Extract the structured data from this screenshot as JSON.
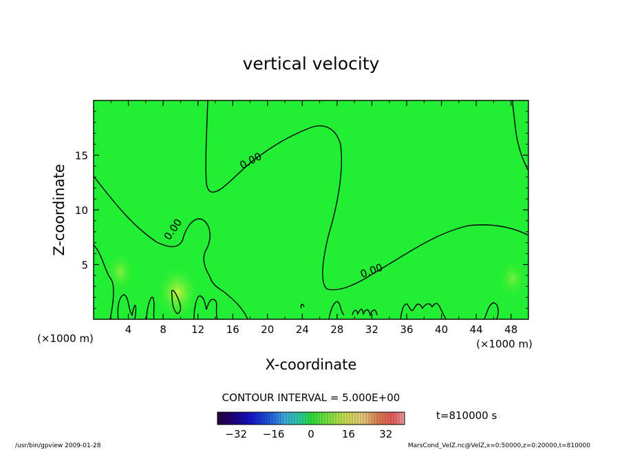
{
  "chart_data": {
    "type": "heatmap",
    "title": "vertical velocity",
    "xlabel": "X-coordinate",
    "ylabel": "Z-coordinate",
    "xunit": "(×1000 m)",
    "yunit": "(×1000 m)",
    "xlim": [
      0,
      50
    ],
    "ylim": [
      0,
      20
    ],
    "x_ticks": [
      4,
      8,
      12,
      16,
      20,
      24,
      28,
      32,
      36,
      40,
      44,
      48
    ],
    "y_ticks": [
      5,
      10,
      15
    ],
    "contour_label": "0.00",
    "contour_interval_text": "CONTOUR INTERVAL = 5.000E+00",
    "colorbar_ticks": [
      -32,
      -16,
      0,
      16,
      32
    ],
    "colorbar_range": [
      -40,
      40
    ],
    "time_text": "t=810000 s",
    "footer_left": "/usr/bin/gpview  2009-01-28",
    "footer_right": "MarsCond_VelZ.nc@VelZ,x=0:50000,z=0:20000,t=810000",
    "field_color": "#22ee33"
  }
}
